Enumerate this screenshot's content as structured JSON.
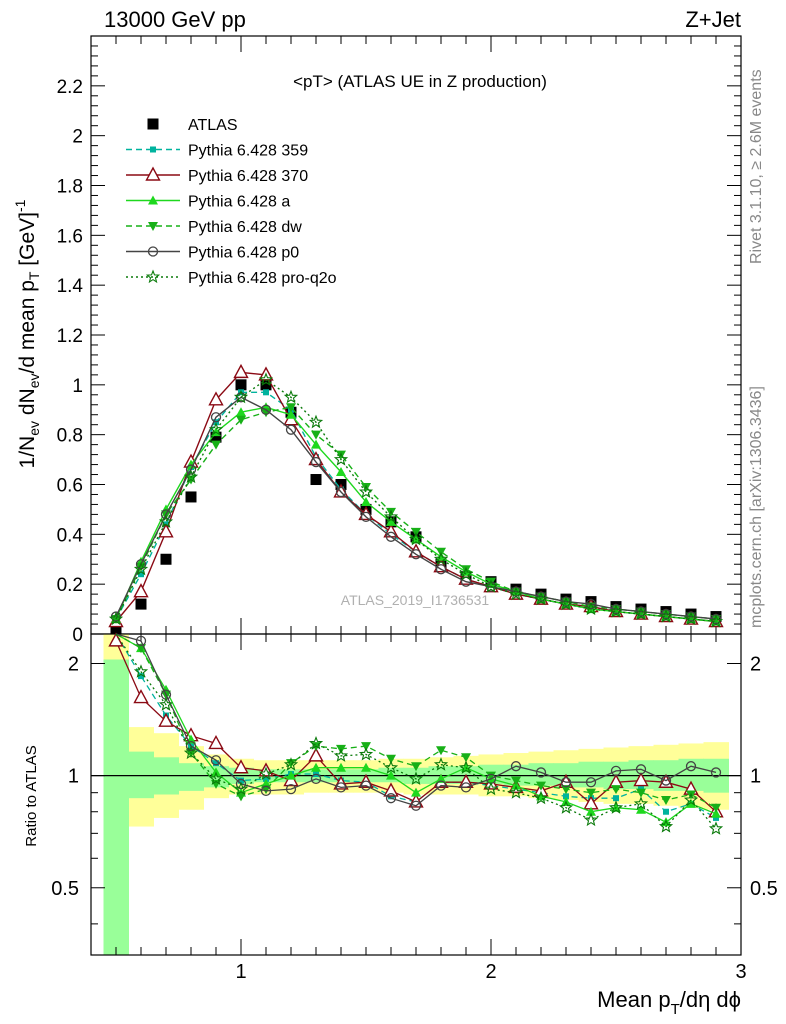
{
  "header": {
    "left": "13000 GeV pp",
    "right": "Z+Jet"
  },
  "side_labels": {
    "rivet": "Rivet 3.1.10, ≥ 2.6M events",
    "mcplots": "mcplots.cern.ch [arXiv:1306.3436]"
  },
  "watermark": "ATLAS_2019_I1736531",
  "colors": {
    "ATLAS": "#000000",
    "359": "#00b39e",
    "370": "#8b0a14",
    "a": "#1ed81e",
    "dw": "#17b017",
    "p0": "#444444",
    "pro-q2o": "#0a7a0a",
    "band_outer": "#ffff99",
    "band_inner": "#99ff99"
  },
  "chart_data": [
    {
      "type": "line",
      "panel": "main",
      "title": "<pT> (ATLAS UE in Z production)",
      "ylabel": "1/N_ev dN_ev/d mean p_T [GeV]^-1",
      "xlabel": "Mean p_T/dη dϕ",
      "xlim": [
        0.4,
        3.0
      ],
      "ylim": [
        0,
        2.4
      ],
      "yticks": [
        0,
        0.2,
        0.4,
        0.6,
        0.8,
        1,
        1.2,
        1.4,
        1.6,
        1.8,
        2,
        2.2
      ],
      "ytick_labels": [
        "0",
        "0.2",
        "0.4",
        "0.6",
        "0.8",
        "1",
        "1.2",
        "1.4",
        "1.6",
        "1.8",
        "2",
        "2.2"
      ],
      "xticks": [
        1,
        2,
        3
      ],
      "xtick_labels": [
        "1",
        "2",
        "3"
      ],
      "x": [
        0.5,
        0.6,
        0.7,
        0.8,
        0.9,
        1.0,
        1.1,
        1.2,
        1.3,
        1.4,
        1.5,
        1.6,
        1.7,
        1.8,
        1.9,
        2.0,
        2.1,
        2.2,
        2.3,
        2.4,
        2.5,
        2.6,
        2.7,
        2.8,
        2.9
      ],
      "legend_position": "top-left",
      "series": [
        {
          "name": "ATLAS",
          "color_key": "ATLAS",
          "marker": "square",
          "line": "none",
          "values": [
            0.02,
            0.12,
            0.3,
            0.55,
            0.79,
            1.0,
            1.0,
            0.89,
            0.62,
            0.6,
            0.5,
            0.45,
            0.39,
            0.28,
            0.23,
            0.21,
            0.18,
            0.16,
            0.14,
            0.13,
            0.11,
            0.1,
            0.09,
            0.08,
            0.07
          ]
        },
        {
          "name": "Pythia 6.428 359",
          "color_key": "359",
          "marker": "small-square",
          "line": "dashed",
          "values": [
            0.06,
            0.24,
            0.44,
            0.67,
            0.85,
            0.97,
            0.97,
            0.9,
            0.71,
            0.58,
            0.48,
            0.4,
            0.33,
            0.27,
            0.22,
            0.19,
            0.16,
            0.14,
            0.12,
            0.11,
            0.09,
            0.08,
            0.07,
            0.06,
            0.05
          ]
        },
        {
          "name": "Pythia 6.428 370",
          "color_key": "370",
          "marker": "open-triangle",
          "line": "solid",
          "values": [
            0.05,
            0.17,
            0.41,
            0.69,
            0.94,
            1.05,
            1.04,
            0.86,
            0.7,
            0.57,
            0.48,
            0.41,
            0.33,
            0.27,
            0.22,
            0.19,
            0.16,
            0.14,
            0.12,
            0.11,
            0.09,
            0.08,
            0.07,
            0.06,
            0.05
          ]
        },
        {
          "name": "Pythia 6.428 a",
          "color_key": "a",
          "marker": "triangle",
          "line": "solid",
          "values": [
            0.06,
            0.29,
            0.5,
            0.68,
            0.81,
            0.89,
            0.91,
            0.88,
            0.76,
            0.65,
            0.53,
            0.45,
            0.38,
            0.31,
            0.25,
            0.2,
            0.17,
            0.14,
            0.12,
            0.1,
            0.09,
            0.08,
            0.07,
            0.06,
            0.05
          ]
        },
        {
          "name": "Pythia 6.428 dw",
          "color_key": "dw",
          "marker": "down-triangle",
          "line": "dashed",
          "values": [
            0.06,
            0.27,
            0.48,
            0.62,
            0.76,
            0.86,
            0.89,
            0.91,
            0.8,
            0.72,
            0.59,
            0.49,
            0.41,
            0.33,
            0.26,
            0.21,
            0.17,
            0.15,
            0.13,
            0.11,
            0.1,
            0.09,
            0.08,
            0.07,
            0.06
          ]
        },
        {
          "name": "Pythia 6.428 p0",
          "color_key": "p0",
          "marker": "open-circle",
          "line": "solid",
          "values": [
            0.07,
            0.28,
            0.48,
            0.66,
            0.87,
            0.95,
            0.9,
            0.82,
            0.69,
            0.57,
            0.47,
            0.39,
            0.32,
            0.26,
            0.21,
            0.19,
            0.17,
            0.15,
            0.13,
            0.12,
            0.1,
            0.09,
            0.08,
            0.07,
            0.06
          ]
        },
        {
          "name": "Pythia 6.428 pro-q2o",
          "color_key": "pro-q2o",
          "marker": "star",
          "line": "dotted",
          "values": [
            0.06,
            0.26,
            0.45,
            0.63,
            0.82,
            0.95,
            1.02,
            0.95,
            0.85,
            0.7,
            0.57,
            0.47,
            0.38,
            0.3,
            0.24,
            0.19,
            0.16,
            0.14,
            0.12,
            0.1,
            0.09,
            0.08,
            0.07,
            0.06,
            0.05
          ]
        }
      ]
    },
    {
      "type": "line",
      "panel": "ratio",
      "ylabel": "Ratio to ATLAS",
      "xlim": [
        0.4,
        3.0
      ],
      "ylim": [
        0.33,
        2.4
      ],
      "scale": "log",
      "yticks": [
        0.5,
        1,
        2
      ],
      "ytick_labels": [
        "0.5",
        "1",
        "2"
      ],
      "reference": 1,
      "x": [
        0.5,
        0.6,
        0.7,
        0.8,
        0.9,
        1.0,
        1.1,
        1.2,
        1.3,
        1.4,
        1.5,
        1.6,
        1.7,
        1.8,
        1.9,
        2.0,
        2.1,
        2.2,
        2.3,
        2.4,
        2.5,
        2.6,
        2.7,
        2.8,
        2.9
      ],
      "band_outer": {
        "low": [
          0.33,
          0.73,
          0.77,
          0.81,
          0.87,
          0.89,
          0.89,
          0.89,
          0.9,
          0.9,
          0.9,
          0.9,
          0.89,
          0.89,
          0.89,
          0.88,
          0.88,
          0.87,
          0.86,
          0.85,
          0.84,
          0.84,
          0.83,
          0.82,
          0.81
        ],
        "high": [
          2.4,
          1.35,
          1.3,
          1.2,
          1.14,
          1.11,
          1.1,
          1.1,
          1.1,
          1.1,
          1.1,
          1.11,
          1.11,
          1.12,
          1.13,
          1.14,
          1.15,
          1.16,
          1.17,
          1.18,
          1.19,
          1.2,
          1.21,
          1.22,
          1.23
        ]
      },
      "band_inner": {
        "low": [
          0.33,
          0.87,
          0.89,
          0.91,
          0.93,
          0.95,
          0.96,
          0.96,
          0.96,
          0.96,
          0.96,
          0.96,
          0.95,
          0.95,
          0.95,
          0.95,
          0.94,
          0.94,
          0.93,
          0.93,
          0.92,
          0.92,
          0.91,
          0.91,
          0.9
        ],
        "high": [
          2.05,
          1.16,
          1.12,
          1.08,
          1.06,
          1.05,
          1.04,
          1.04,
          1.04,
          1.04,
          1.04,
          1.05,
          1.05,
          1.06,
          1.06,
          1.07,
          1.07,
          1.08,
          1.08,
          1.09,
          1.09,
          1.1,
          1.1,
          1.11,
          1.11
        ]
      },
      "series": [
        {
          "name": "Pythia 6.428 359",
          "color_key": "359",
          "marker": "small-square",
          "line": "dashed",
          "values": [
            2.4,
            1.85,
            1.45,
            1.2,
            1.08,
            0.97,
            0.98,
            1.01,
            1.01,
            0.97,
            0.96,
            0.88,
            0.85,
            0.96,
            0.96,
            0.94,
            0.92,
            0.9,
            0.88,
            0.87,
            0.87,
            0.92,
            0.8,
            0.84,
            0.77
          ]
        },
        {
          "name": "Pythia 6.428 370",
          "color_key": "370",
          "marker": "open-triangle",
          "line": "solid",
          "values": [
            2.3,
            1.62,
            1.4,
            1.28,
            1.22,
            1.05,
            1.03,
            0.97,
            1.13,
            0.95,
            0.96,
            0.91,
            0.85,
            0.96,
            0.96,
            0.95,
            0.93,
            0.91,
            0.96,
            0.84,
            0.96,
            0.97,
            0.96,
            0.92,
            0.8
          ]
        },
        {
          "name": "Pythia 6.428 a",
          "color_key": "a",
          "marker": "triangle",
          "line": "solid",
          "values": [
            2.4,
            2.2,
            1.7,
            1.25,
            1.02,
            0.9,
            0.95,
            1.0,
            1.05,
            1.05,
            1.05,
            1.0,
            0.9,
            0.98,
            1.05,
            0.98,
            0.94,
            0.88,
            0.85,
            0.8,
            0.82,
            0.81,
            0.75,
            0.84,
            0.79
          ]
        },
        {
          "name": "Pythia 6.428 dw",
          "color_key": "dw",
          "marker": "down-triangle",
          "line": "dashed",
          "values": [
            2.4,
            2.2,
            1.65,
            1.15,
            0.95,
            0.88,
            0.92,
            1.08,
            1.2,
            1.18,
            1.2,
            1.11,
            1.06,
            1.17,
            1.12,
            1.0,
            0.97,
            0.94,
            0.92,
            0.9,
            0.92,
            0.9,
            0.86,
            0.89,
            0.82
          ]
        },
        {
          "name": "Pythia 6.428 p0",
          "color_key": "p0",
          "marker": "open-circle",
          "line": "solid",
          "values": [
            2.4,
            2.3,
            1.65,
            1.2,
            1.1,
            0.95,
            0.91,
            0.92,
            0.98,
            0.93,
            0.94,
            0.87,
            0.83,
            0.94,
            0.93,
            0.98,
            1.06,
            1.02,
            0.96,
            0.96,
            1.03,
            1.04,
            0.97,
            1.06,
            1.02
          ]
        },
        {
          "name": "Pythia 6.428 pro-q2o",
          "color_key": "pro-q2o",
          "marker": "star",
          "line": "dotted",
          "values": [
            2.4,
            1.9,
            1.55,
            1.15,
            0.98,
            0.92,
            1.01,
            1.07,
            1.22,
            1.13,
            1.14,
            1.05,
            0.98,
            1.07,
            1.05,
            0.92,
            0.9,
            0.87,
            0.82,
            0.76,
            0.82,
            0.84,
            0.73,
            0.86,
            0.72
          ]
        }
      ]
    }
  ]
}
